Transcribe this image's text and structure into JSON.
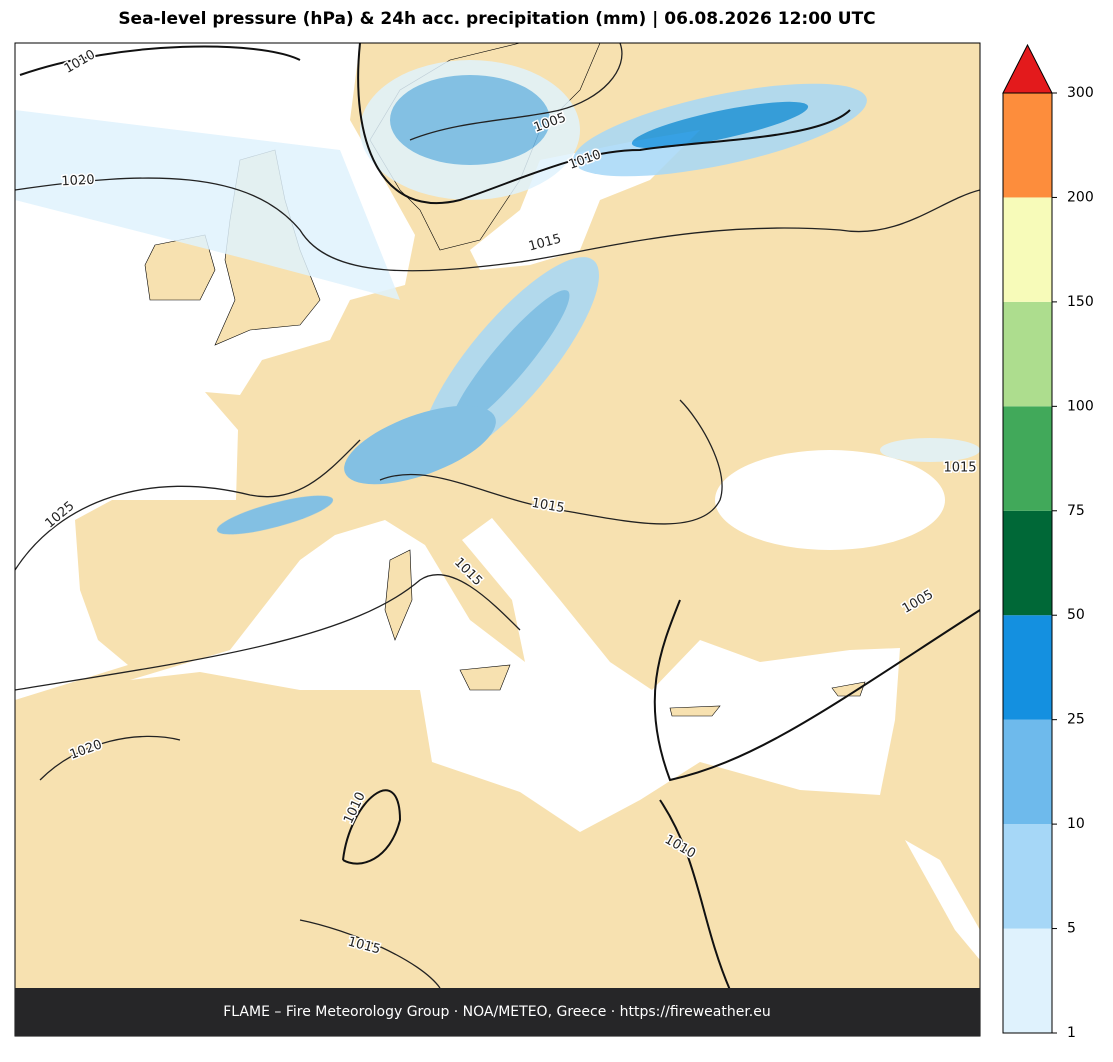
{
  "title": "Sea-level pressure (hPa) & 24h acc. precipitation (mm)  |  06.08.2026 12:00 UTC",
  "footer": "FLAME – Fire Meteorology Group · NOA/METEO, Greece · https://fireweather.eu",
  "contour_labels": [
    "1010",
    "1005",
    "1010",
    "1020",
    "1015",
    "1015",
    "1025",
    "1015",
    "1015",
    "1005",
    "1020",
    "1010",
    "1010",
    "1015"
  ],
  "colorbar": {
    "levels": [
      1,
      5,
      10,
      25,
      50,
      75,
      100,
      150,
      200,
      300
    ],
    "colors": [
      "#dff2fd",
      "#a6d7f7",
      "#6ebaec",
      "#1490e0",
      "#006837",
      "#41a95a",
      "#addd8e",
      "#f7fbb9",
      "#fd8d3c"
    ],
    "extend_color": "#e31a1c"
  }
}
